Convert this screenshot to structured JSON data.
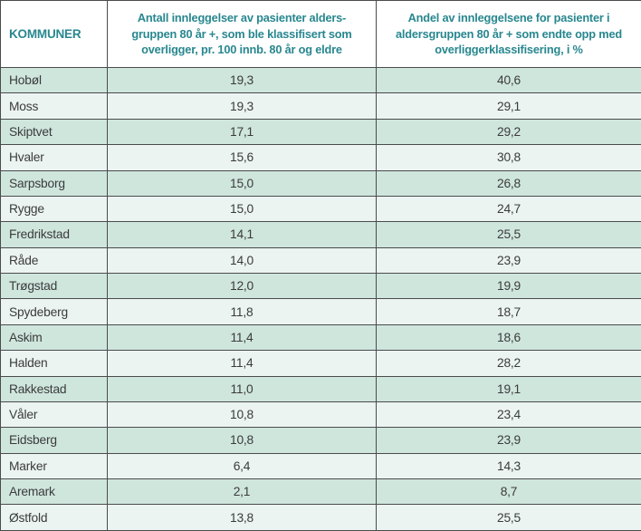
{
  "colors": {
    "teal_row": "#cfe6dd",
    "light_row": "#ebf4f0",
    "header_text": "#28878f",
    "border": "#4a4b4d",
    "text": "#3b3b3d",
    "header_bg": "#ffffff"
  },
  "chart_data": {
    "type": "table",
    "columns": [
      {
        "label": "KOMMUNER",
        "lines": [
          "KOMMUNER"
        ]
      },
      {
        "label": "Antall innleggelser av pasienter alders-gruppen 80 år +, som ble klassifisert som overligger, pr. 100 innb. 80 år og eldre",
        "lines": [
          "Antall innleggelser av pasienter alders-",
          "gruppen 80 år +, som ble klassifisert som",
          "overligger, pr. 100 innb. 80 år og eldre"
        ]
      },
      {
        "label": "Andel av innleggelsene for pasienter i aldersgruppen 80 år + som endte opp med overliggerklassifisering, i %",
        "lines": [
          "Andel av innleggelsene for pasienter i",
          "aldersgruppen 80 år + som endte opp med",
          "overliggerklassifisering, i %"
        ]
      }
    ],
    "rows": [
      [
        "Hobøl",
        "19,3",
        "40,6"
      ],
      [
        "Moss",
        "19,3",
        "29,1"
      ],
      [
        "Skiptvet",
        "17,1",
        "29,2"
      ],
      [
        "Hvaler",
        "15,6",
        "30,8"
      ],
      [
        "Sarpsborg",
        "15,0",
        "26,8"
      ],
      [
        "Rygge",
        "15,0",
        "24,7"
      ],
      [
        "Fredrikstad",
        "14,1",
        "25,5"
      ],
      [
        "Råde",
        "14,0",
        "23,9"
      ],
      [
        "Trøgstad",
        "12,0",
        "19,9"
      ],
      [
        "Spydeberg",
        "11,8",
        "18,7"
      ],
      [
        "Askim",
        "11,4",
        "18,6"
      ],
      [
        "Halden",
        "11,4",
        "28,2"
      ],
      [
        "Rakkestad",
        "11,0",
        "19,1"
      ],
      [
        "Våler",
        "10,8",
        "23,4"
      ],
      [
        "Eidsberg",
        "10,8",
        "23,9"
      ],
      [
        "Marker",
        "6,4",
        "14,3"
      ],
      [
        "Aremark",
        "2,1",
        "8,7"
      ],
      [
        "Østfold",
        "13,8",
        "25,5"
      ]
    ]
  }
}
